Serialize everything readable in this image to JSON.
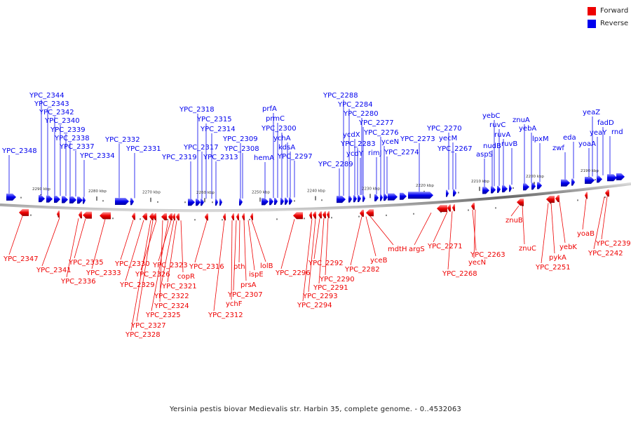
{
  "legend": {
    "forward": {
      "label": "Forward",
      "color": "#ee0000"
    },
    "reverse": {
      "label": "Reverse",
      "color": "#0000ee"
    }
  },
  "caption": "Yersinia pestis biovar Medievalis str. Harbin 35, complete genome. - 0..4532063",
  "ruler_ticks": [
    "2290 kbp",
    "2280 kbp",
    "2270 kbp",
    "2260 kbp",
    "2250 kbp",
    "2240 kbp",
    "2230 kbp",
    "2220 kbp",
    "2210 kbp",
    "2200 kbp",
    "2190 kbp"
  ],
  "reverse_labels": [
    "YPC_2348",
    "YPC_2344",
    "YPC_2343",
    "YPC_2342",
    "YPC_2340",
    "YPC_2339",
    "YPC_2338",
    "YPC_2337",
    "YPC_2334",
    "YPC_2332",
    "YPC_2331",
    "YPC_2319",
    "YPC_2318",
    "YPC_2317",
    "YPC_2315",
    "YPC_2314",
    "YPC_2313",
    "YPC_2309",
    "YPC_2308",
    "hemA",
    "prfA",
    "prmC",
    "YPC_2300",
    "ychA",
    "kdsA",
    "YPC_2297",
    "YPC_2289",
    "YPC_2288",
    "YPC_2284",
    "ycdX",
    "YPC_2283",
    "ycdY",
    "YPC_2280",
    "YPC_2277",
    "rimJ",
    "YPC_2276",
    "yceN",
    "YPC_2274",
    "YPC_2273",
    "YPC_2270",
    "yecM",
    "YPC_2267",
    "aspS",
    "nudB",
    "yebC",
    "ruvC",
    "ruvA",
    "ruvB",
    "znuA",
    "yebA",
    "lpxM",
    "zwf",
    "eda",
    "yoaA",
    "yeaZ",
    "yeaY",
    "fadD",
    "rnd"
  ],
  "forward_labels": [
    "YPC_2347",
    "YPC_2341",
    "YPC_2336",
    "YPC_2335",
    "YPC_2333",
    "YPC_2330",
    "YPC_2329",
    "YPC_2328",
    "YPC_2327",
    "YPC_2326",
    "YPC_2325",
    "YPC_2324",
    "YPC_2323",
    "YPC_2322",
    "YPC_2321",
    "copR",
    "YPC_2316",
    "YPC_2312",
    "ychF",
    "YPC_2307",
    "pth",
    "prsA",
    "ispE",
    "lolB",
    "YPC_2296",
    "YPC_2294",
    "YPC_2293",
    "YPC_2292",
    "YPC_2291",
    "YPC_2290",
    "YPC_2282",
    "yceB",
    "mdtH",
    "argS",
    "YPC_2271",
    "YPC_2268",
    "YPC_2263",
    "yecN",
    "znuB",
    "znuC",
    "YPC_2251",
    "pykA",
    "yebK",
    "yoaB",
    "YPC_2242",
    "YPC_2239"
  ]
}
